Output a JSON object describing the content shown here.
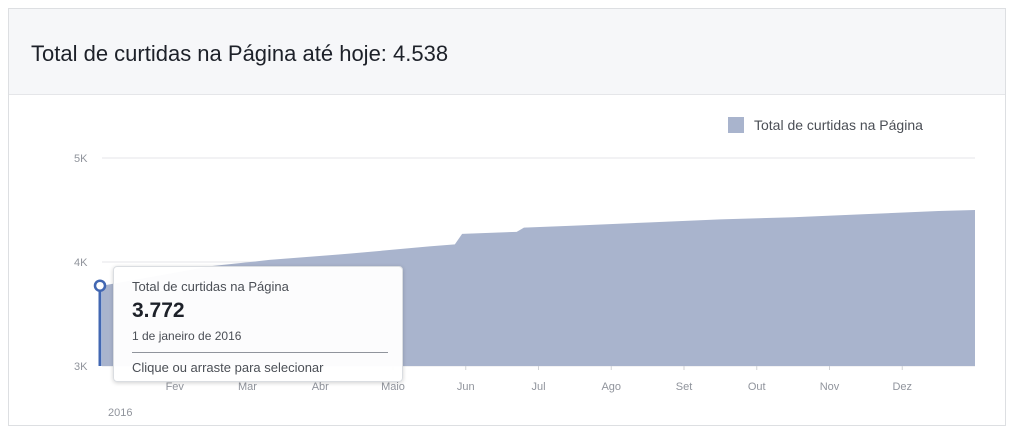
{
  "card": {
    "title": "Total de curtidas na Página até hoje: 4.538"
  },
  "tooltip": {
    "series_name": "Total de curtidas na Página",
    "value": "3.772",
    "date": "1 de janeiro de 2016",
    "hint": "Clique ou arraste para selecionar"
  },
  "colors": {
    "area_fill": "#a9b4cd",
    "legend_swatch": "#a9b4cd",
    "marker": "#4267b2",
    "grid": "#e5e6e9",
    "axis_text": "#90949c"
  },
  "chart_data": {
    "type": "area",
    "title": "",
    "year_label": "2016",
    "legend": {
      "position": "top-right",
      "label": "Total de curtidas na Página"
    },
    "yticks": [
      {
        "value": 3000,
        "label": "3K"
      },
      {
        "value": 4000,
        "label": "4K"
      },
      {
        "value": 5000,
        "label": "5K"
      }
    ],
    "ylim": [
      3000,
      5000
    ],
    "xticks": [
      {
        "x": 1,
        "label": "Fev"
      },
      {
        "x": 2,
        "label": "Mar"
      },
      {
        "x": 3,
        "label": "Abr"
      },
      {
        "x": 4,
        "label": "Maio"
      },
      {
        "x": 5,
        "label": "Jun"
      },
      {
        "x": 6,
        "label": "Jul"
      },
      {
        "x": 7,
        "label": "Ago"
      },
      {
        "x": 8,
        "label": "Set"
      },
      {
        "x": 9,
        "label": "Out"
      },
      {
        "x": 10,
        "label": "Nov"
      },
      {
        "x": 11,
        "label": "Dez"
      }
    ],
    "xlim": [
      0,
      12
    ],
    "grid": true,
    "series": [
      {
        "name": "Total de curtidas na Página",
        "points": [
          {
            "x": 0.0,
            "y": 3772
          },
          {
            "x": 1.5,
            "y": 3960
          },
          {
            "x": 2.3,
            "y": 4020
          },
          {
            "x": 3.4,
            "y": 4080
          },
          {
            "x": 4.5,
            "y": 4150
          },
          {
            "x": 4.85,
            "y": 4170
          },
          {
            "x": 4.95,
            "y": 4270
          },
          {
            "x": 5.7,
            "y": 4290
          },
          {
            "x": 5.8,
            "y": 4330
          },
          {
            "x": 6.5,
            "y": 4350
          },
          {
            "x": 7.5,
            "y": 4380
          },
          {
            "x": 8.5,
            "y": 4410
          },
          {
            "x": 9.5,
            "y": 4430
          },
          {
            "x": 10.5,
            "y": 4460
          },
          {
            "x": 11.5,
            "y": 4490
          },
          {
            "x": 12.0,
            "y": 4500
          }
        ]
      }
    ],
    "selected_point": {
      "x": 0,
      "y": 3772
    }
  }
}
